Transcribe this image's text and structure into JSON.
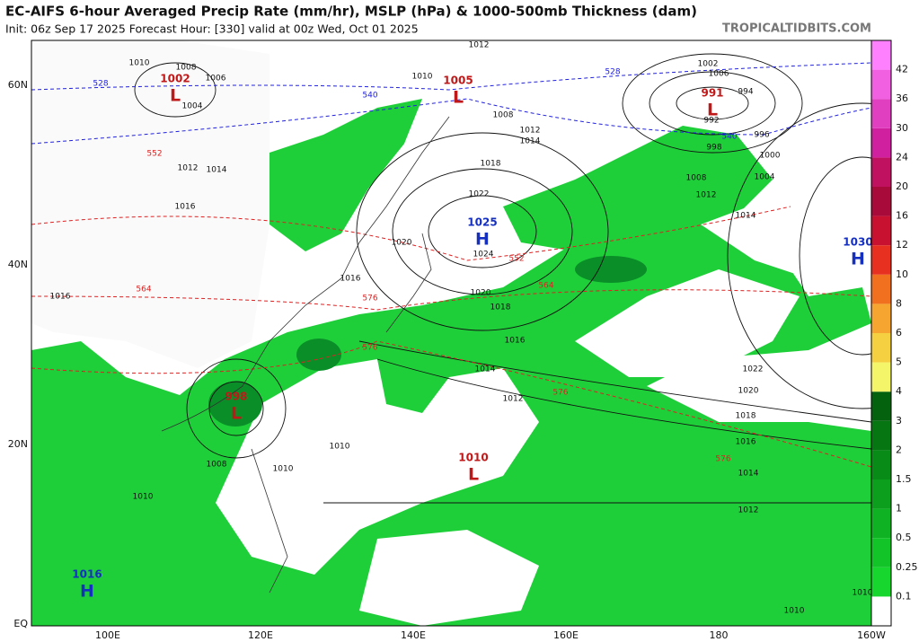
{
  "header": {
    "title": "EC-AIFS 6-hour Averaged Precip Rate (mm/hr), MSLP (hPa) & 1000-500mb Thickness (dam)",
    "init": "Init: 06z Sep 17 2025   Forecast Hour: [330]   valid at 00z Wed, Oct 01 2025",
    "site": "TROPICALTIDBITS.COM"
  },
  "map": {
    "lat_labels": [
      "60N",
      "40N",
      "20N",
      "EQ"
    ],
    "lon_labels": [
      "100E",
      "120E",
      "140E",
      "160E",
      "180",
      "160W"
    ],
    "centers": [
      {
        "pressure": "1002",
        "kind": "L"
      },
      {
        "pressure": "1005",
        "kind": "L"
      },
      {
        "pressure": "991",
        "kind": "L"
      },
      {
        "pressure": "1025",
        "kind": "H"
      },
      {
        "pressure": "1030",
        "kind": "H"
      },
      {
        "pressure": "998",
        "kind": "L"
      },
      {
        "pressure": "1010",
        "kind": "L"
      },
      {
        "pressure": "1016",
        "kind": "H"
      }
    ],
    "isobar_labels": [
      "1010",
      "1008",
      "1006",
      "1004",
      "1012",
      "1014",
      "1016",
      "1012",
      "1010",
      "1008",
      "1012",
      "1014",
      "1018",
      "1022",
      "1020",
      "1024",
      "1016",
      "1020",
      "1018",
      "1016",
      "1014",
      "1012",
      "1010",
      "1010",
      "1008",
      "1006",
      "1002",
      "1000",
      "998",
      "994",
      "992",
      "996",
      "1004",
      "1008",
      "1012",
      "1014",
      "1022",
      "1020",
      "1018",
      "1016",
      "1014",
      "1012",
      "1010",
      "1016",
      "1010",
      "1010"
    ],
    "thickness_labels": [
      "528",
      "540",
      "552",
      "564",
      "576",
      "528",
      "540",
      "552",
      "564",
      "576",
      "576",
      "576"
    ]
  },
  "colorbar": {
    "labels": [
      "42",
      "36",
      "30",
      "24",
      "20",
      "16",
      "12",
      "10",
      "8",
      "6",
      "5",
      "4",
      "3",
      "2",
      "1.5",
      "1",
      "0.5",
      "0.25",
      "0.1"
    ]
  }
}
